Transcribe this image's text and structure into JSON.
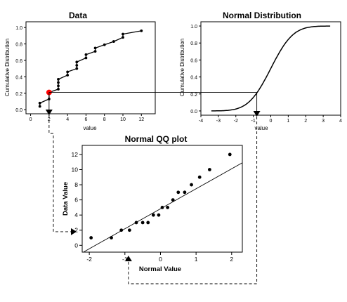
{
  "chart_data": [
    {
      "id": "data",
      "type": "line",
      "title": "Data",
      "xlabel": "value",
      "ylabel": "Cumulative Distribution",
      "xlim": [
        -0.5,
        13.5
      ],
      "ylim": [
        -0.05,
        1.07
      ],
      "xticks": [
        "0",
        "2",
        "4",
        "6",
        "8",
        "10",
        "12"
      ],
      "yticks": [
        "0.0",
        "0.2",
        "0.4",
        "0.6",
        "0.8",
        "1.0"
      ],
      "points": [
        {
          "x": 1.0,
          "y": 0.04
        },
        {
          "x": 1.0,
          "y": 0.08
        },
        {
          "x": 2.0,
          "y": 0.13
        },
        {
          "x": 2.0,
          "y": 0.21
        },
        {
          "x": 3.0,
          "y": 0.25
        },
        {
          "x": 3.0,
          "y": 0.29
        },
        {
          "x": 3.0,
          "y": 0.33
        },
        {
          "x": 3.0,
          "y": 0.37
        },
        {
          "x": 4.0,
          "y": 0.42
        },
        {
          "x": 4.0,
          "y": 0.46
        },
        {
          "x": 5.0,
          "y": 0.5
        },
        {
          "x": 5.0,
          "y": 0.54
        },
        {
          "x": 5.0,
          "y": 0.58
        },
        {
          "x": 6.0,
          "y": 0.63
        },
        {
          "x": 6.0,
          "y": 0.67
        },
        {
          "x": 7.0,
          "y": 0.71
        },
        {
          "x": 7.0,
          "y": 0.75
        },
        {
          "x": 8.0,
          "y": 0.79
        },
        {
          "x": 9.0,
          "y": 0.83
        },
        {
          "x": 10.0,
          "y": 0.88
        },
        {
          "x": 10.0,
          "y": 0.92
        },
        {
          "x": 12.0,
          "y": 0.96
        }
      ],
      "highlight": {
        "x": 2.0,
        "y": 0.21,
        "color": "#ff0000"
      }
    },
    {
      "id": "normal",
      "type": "line",
      "title": "Normal Distribution",
      "xlabel": "value",
      "ylabel": "Cumulative Distribution",
      "xlim": [
        -4,
        4
      ],
      "ylim": [
        -0.05,
        1.05
      ],
      "xticks": [
        "-4",
        "-3",
        "-2",
        "-1",
        "0",
        "1",
        "2",
        "3",
        "4"
      ],
      "yticks": [
        "0.0",
        "0.2",
        "0.4",
        "0.6",
        "0.8",
        "1.0"
      ],
      "curve_x_range": [
        -3.4,
        3.4
      ],
      "marker": {
        "x": -0.8,
        "y": 0.21
      }
    },
    {
      "id": "qq",
      "type": "scatter",
      "title": "Normal QQ plot",
      "xlabel": "Normal Value",
      "ylabel": "Data Value",
      "xlim": [
        -2.2,
        2.3
      ],
      "ylim": [
        -0.9,
        13.2
      ],
      "xticks": [
        "-2",
        "-1",
        "0",
        "1",
        "2"
      ],
      "yticks": [
        "0",
        "2",
        "4",
        "6",
        "8",
        "10",
        "12"
      ],
      "points": [
        {
          "x": -1.95,
          "y": 1
        },
        {
          "x": -1.38,
          "y": 1
        },
        {
          "x": -1.1,
          "y": 2
        },
        {
          "x": -0.87,
          "y": 2
        },
        {
          "x": -0.68,
          "y": 3
        },
        {
          "x": -0.5,
          "y": 3
        },
        {
          "x": -0.35,
          "y": 3
        },
        {
          "x": -0.2,
          "y": 4
        },
        {
          "x": -0.05,
          "y": 4
        },
        {
          "x": 0.05,
          "y": 5
        },
        {
          "x": 0.2,
          "y": 5
        },
        {
          "x": 0.35,
          "y": 6
        },
        {
          "x": 0.5,
          "y": 7
        },
        {
          "x": 0.68,
          "y": 7
        },
        {
          "x": 0.87,
          "y": 8
        },
        {
          "x": 1.1,
          "y": 9
        },
        {
          "x": 1.38,
          "y": 10
        },
        {
          "x": 1.95,
          "y": 12
        }
      ],
      "fit_line": {
        "x": [
          -2.15,
          2.3
        ],
        "y": [
          -0.85,
          10.9
        ]
      },
      "marker": {
        "x": -0.9,
        "y": 1.8
      }
    }
  ]
}
